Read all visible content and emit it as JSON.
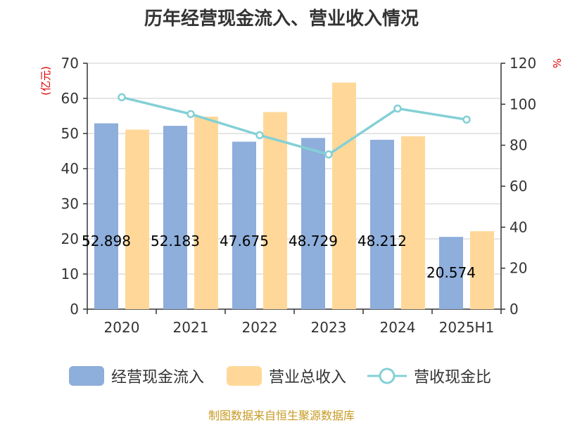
{
  "title": "历年经营现金流入、营业收入情况",
  "source": "制图数据来自恒生聚源数据库",
  "chart_data": {
    "type": "bar",
    "categories": [
      "2020",
      "2021",
      "2022",
      "2023",
      "2024",
      "2025H1"
    ],
    "series": [
      {
        "name": "经营现金流入",
        "type": "bar",
        "axis": "left",
        "color": "#8eaedb",
        "values": [
          52.898,
          52.183,
          47.675,
          48.729,
          48.212,
          20.574
        ]
      },
      {
        "name": "营业总收入",
        "type": "bar",
        "axis": "left",
        "color": "#ffd899",
        "values": [
          51.1,
          54.8,
          56.1,
          64.5,
          49.2,
          22.2
        ]
      },
      {
        "name": "营收现金比",
        "type": "line",
        "axis": "right",
        "color": "#83d0d5",
        "values": [
          103.4,
          95.2,
          84.9,
          75.5,
          97.9,
          92.5
        ]
      }
    ],
    "data_labels": [
      "52.898",
      "52.183",
      "47.675",
      "48.729",
      "48.212",
      "20.574"
    ],
    "y_left": {
      "label": "(亿元)",
      "min": 0,
      "max": 70,
      "step": 10,
      "ticks": [
        "0",
        "10",
        "20",
        "30",
        "40",
        "50",
        "60",
        "70"
      ]
    },
    "y_right": {
      "label": "%",
      "min": 0,
      "max": 120,
      "step": 20,
      "ticks": [
        "0",
        "20",
        "40",
        "60",
        "80",
        "100",
        "120"
      ]
    },
    "grid": true,
    "legend_position": "bottom"
  }
}
